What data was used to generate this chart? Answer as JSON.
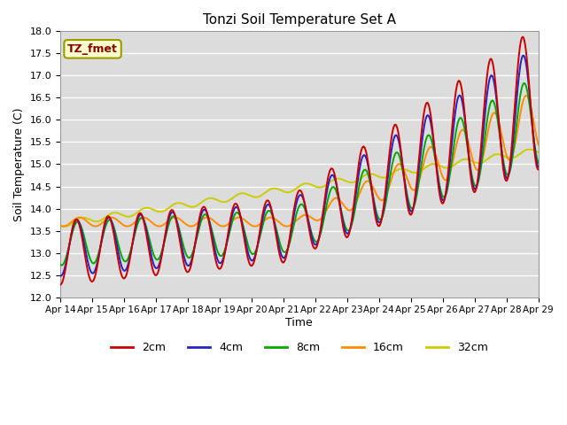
{
  "title": "Tonzi Soil Temperature Set A",
  "xlabel": "Time",
  "ylabel": "Soil Temperature (C)",
  "ylim": [
    12.0,
    18.0
  ],
  "yticks": [
    12.0,
    12.5,
    13.0,
    13.5,
    14.0,
    14.5,
    15.0,
    15.5,
    16.0,
    16.5,
    17.0,
    17.5,
    18.0
  ],
  "xtick_labels": [
    "Apr 14",
    "Apr 15",
    "Apr 16",
    "Apr 17",
    "Apr 18",
    "Apr 19",
    "Apr 20",
    "Apr 21",
    "Apr 22",
    "Apr 23",
    "Apr 24",
    "Apr 25",
    "Apr 26",
    "Apr 27",
    "Apr 28",
    "Apr 29"
  ],
  "legend_label": "TZ_fmet",
  "series_labels": [
    "2cm",
    "4cm",
    "8cm",
    "16cm",
    "32cm"
  ],
  "series_colors": [
    "#cc0000",
    "#2222cc",
    "#00aa00",
    "#ff8c00",
    "#cccc00"
  ],
  "line_width": 1.4,
  "bg_color": "#dcdcdc",
  "n_points": 720
}
